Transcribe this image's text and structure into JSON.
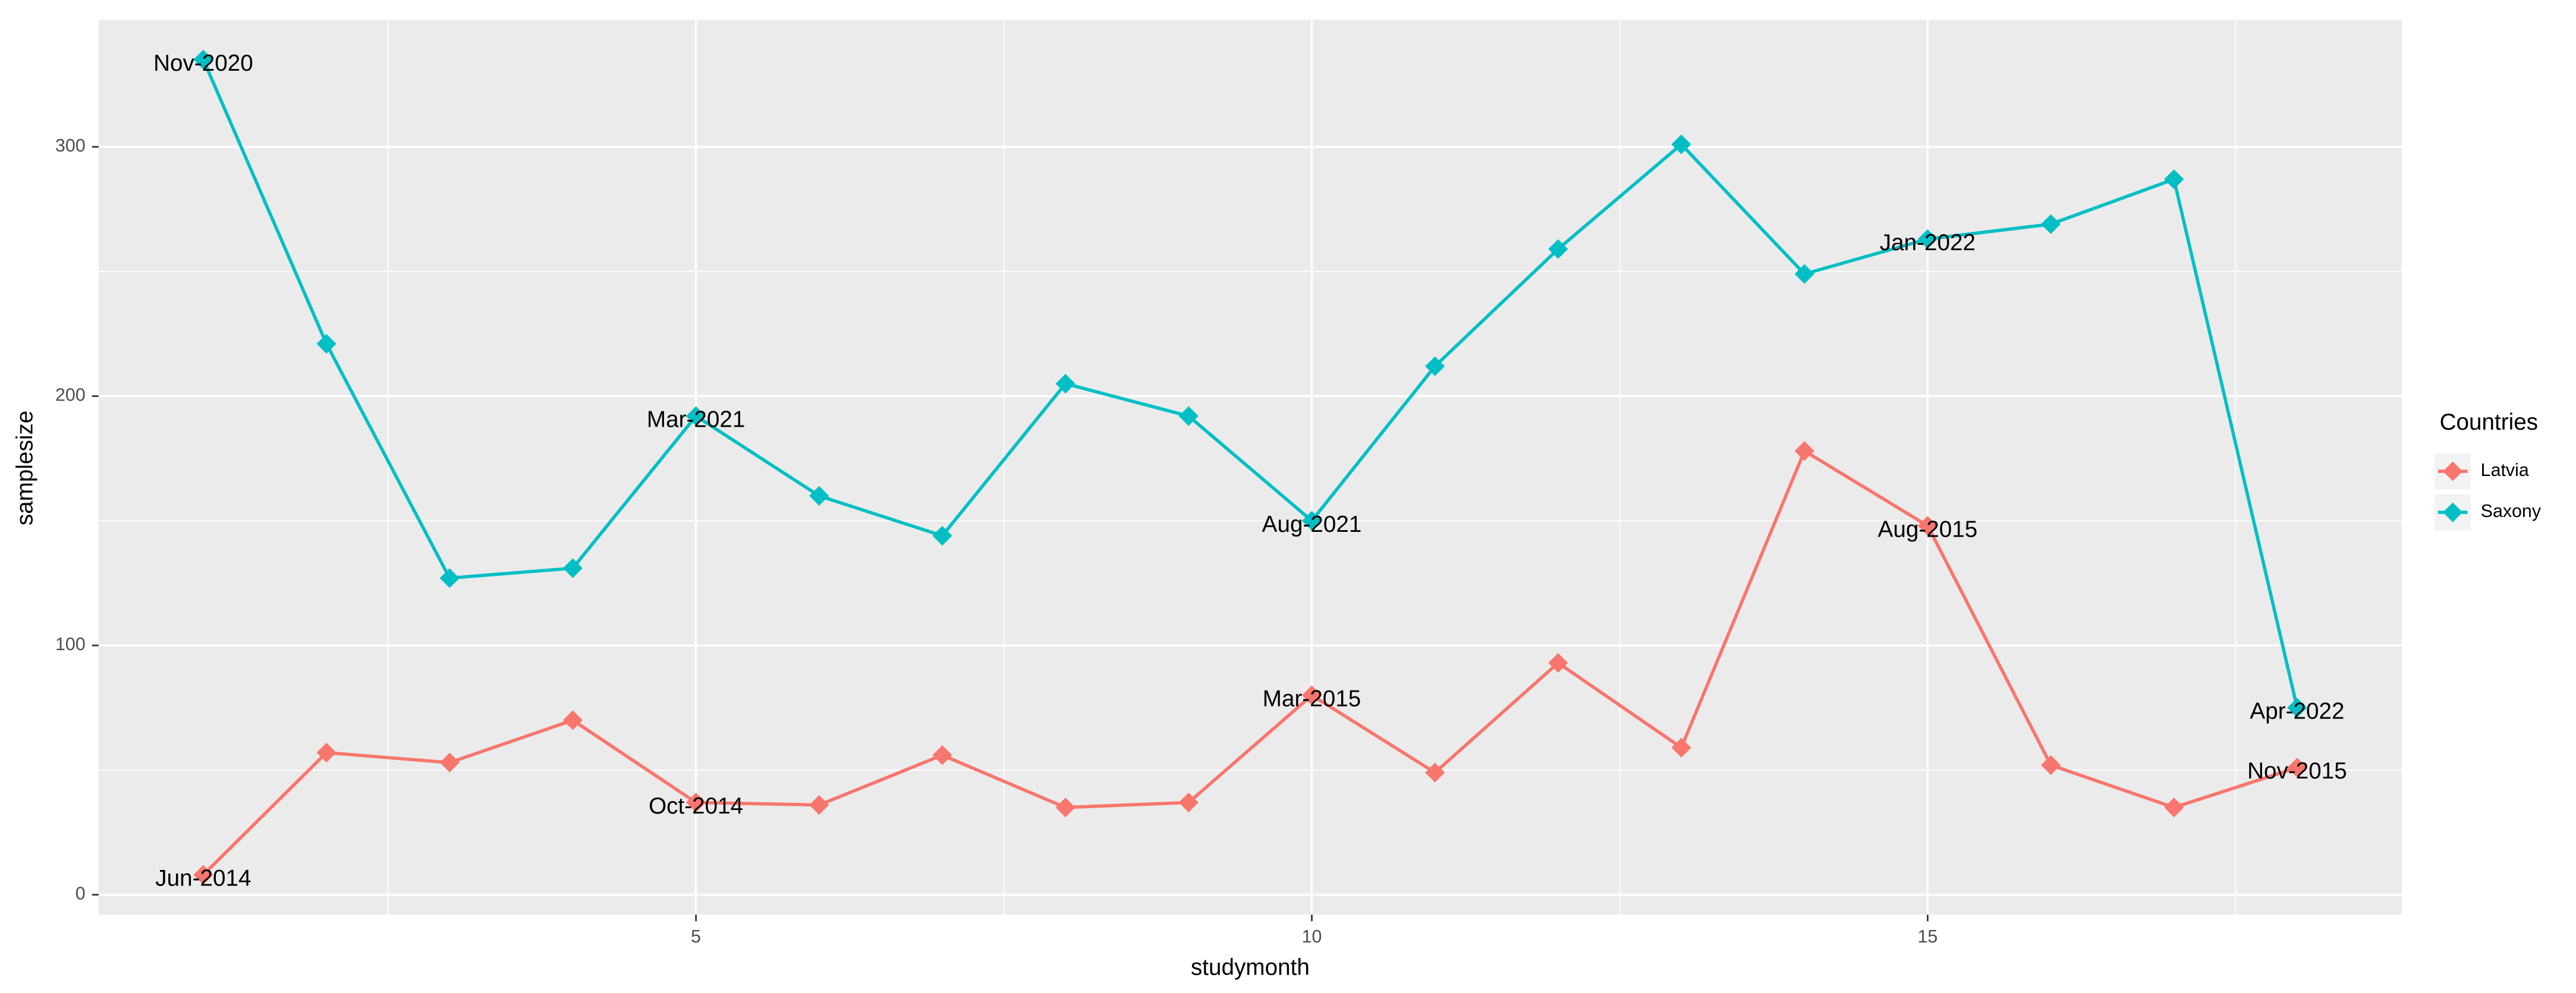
{
  "chart_data": {
    "type": "line",
    "x_label": "studymonth",
    "y_label": "samplesize",
    "legend_title": "Countries",
    "legend_position": "right",
    "x": [
      1,
      2,
      3,
      4,
      5,
      6,
      7,
      8,
      9,
      10,
      11,
      12,
      13,
      14,
      15,
      16,
      17,
      18
    ],
    "series": [
      {
        "name": "Latvia",
        "color": "#F8766D",
        "values": [
          8,
          57,
          53,
          70,
          37,
          36,
          56,
          35,
          37,
          80,
          49,
          93,
          59,
          178,
          148,
          52,
          35,
          51
        ],
        "point_labels": [
          "Jun-2014",
          null,
          null,
          null,
          "Oct-2014",
          null,
          null,
          null,
          null,
          "Mar-2015",
          null,
          null,
          null,
          null,
          "Aug-2015",
          null,
          null,
          "Nov-2015"
        ]
      },
      {
        "name": "Saxony",
        "color": "#00BFC4",
        "values": [
          335,
          221,
          127,
          131,
          192,
          160,
          144,
          205,
          192,
          150,
          212,
          259,
          301,
          249,
          263,
          269,
          287,
          75
        ],
        "point_labels": [
          "Nov-2020",
          null,
          null,
          null,
          "Mar-2021",
          null,
          null,
          null,
          null,
          "Aug-2021",
          null,
          null,
          null,
          null,
          "Jan-2022",
          null,
          null,
          "Apr-2022"
        ]
      }
    ],
    "xlim": [
      0.15,
      18.85
    ],
    "ylim": [
      -8,
      351
    ],
    "xticks": [
      5,
      10,
      15
    ],
    "yticks": [
      0,
      100,
      200,
      300
    ],
    "xminor": [
      2.5,
      7.5,
      12.5,
      17.5
    ],
    "yminor": [
      50,
      150,
      250
    ],
    "grid": true
  }
}
